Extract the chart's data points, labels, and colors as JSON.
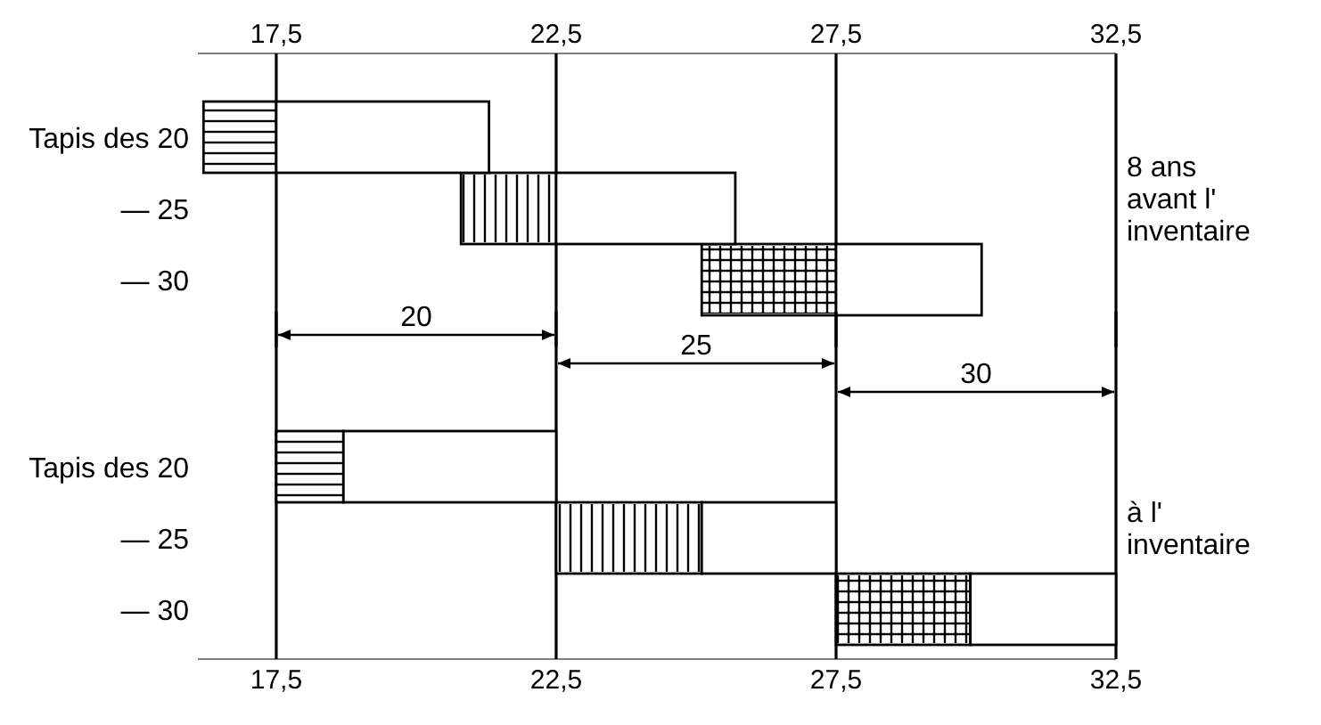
{
  "chart_data": [
    {
      "type": "bar",
      "orientation": "horizontal",
      "categories": [
        "Tapis des 20",
        "— 25",
        "— 30"
      ],
      "series": [
        {
          "color": "#000000",
          "base": [
            16.2,
            20.8,
            25.1
          ],
          "values": [
            1.3,
            1.7,
            2.4
          ]
        },
        {
          "color": "#ffffff",
          "base": [
            17.5,
            22.5,
            27.5
          ],
          "values": [
            3.8,
            3.2,
            2.6
          ]
        }
      ],
      "xlim": [
        16.1,
        32.5
      ],
      "xticks": [
        {
          "value": 17.5,
          "label": "17,5"
        },
        {
          "value": 22.5,
          "label": "22,5"
        },
        {
          "value": 27.5,
          "label": "27,5"
        },
        {
          "value": 32.5,
          "label": "32,5"
        }
      ],
      "grid": "x",
      "annotations": [
        "8 ans avant l' inventaire"
      ]
    },
    {
      "type": "bar",
      "orientation": "horizontal",
      "categories": [
        "Tapis des 20",
        "— 25",
        "— 30"
      ],
      "series": [
        {
          "color": "#000000",
          "base": [
            17.5,
            22.5,
            27.5
          ],
          "values": [
            1.2,
            2.6,
            2.4
          ]
        },
        {
          "color": "#ffffff",
          "base": [
            18.7,
            25.1,
            29.9
          ],
          "values": [
            3.8,
            2.4,
            2.6
          ]
        }
      ],
      "xlim": [
        16.1,
        32.5
      ],
      "xticks": [
        {
          "value": 17.5,
          "label": "17,5"
        },
        {
          "value": 22.5,
          "label": "22,5"
        },
        {
          "value": 27.5,
          "label": "27,5"
        },
        {
          "value": 32.5,
          "label": "32,5"
        }
      ],
      "grid": "x",
      "annotations": [
        "à l' inventaire",
        "20",
        "25",
        "30"
      ]
    }
  ]
}
